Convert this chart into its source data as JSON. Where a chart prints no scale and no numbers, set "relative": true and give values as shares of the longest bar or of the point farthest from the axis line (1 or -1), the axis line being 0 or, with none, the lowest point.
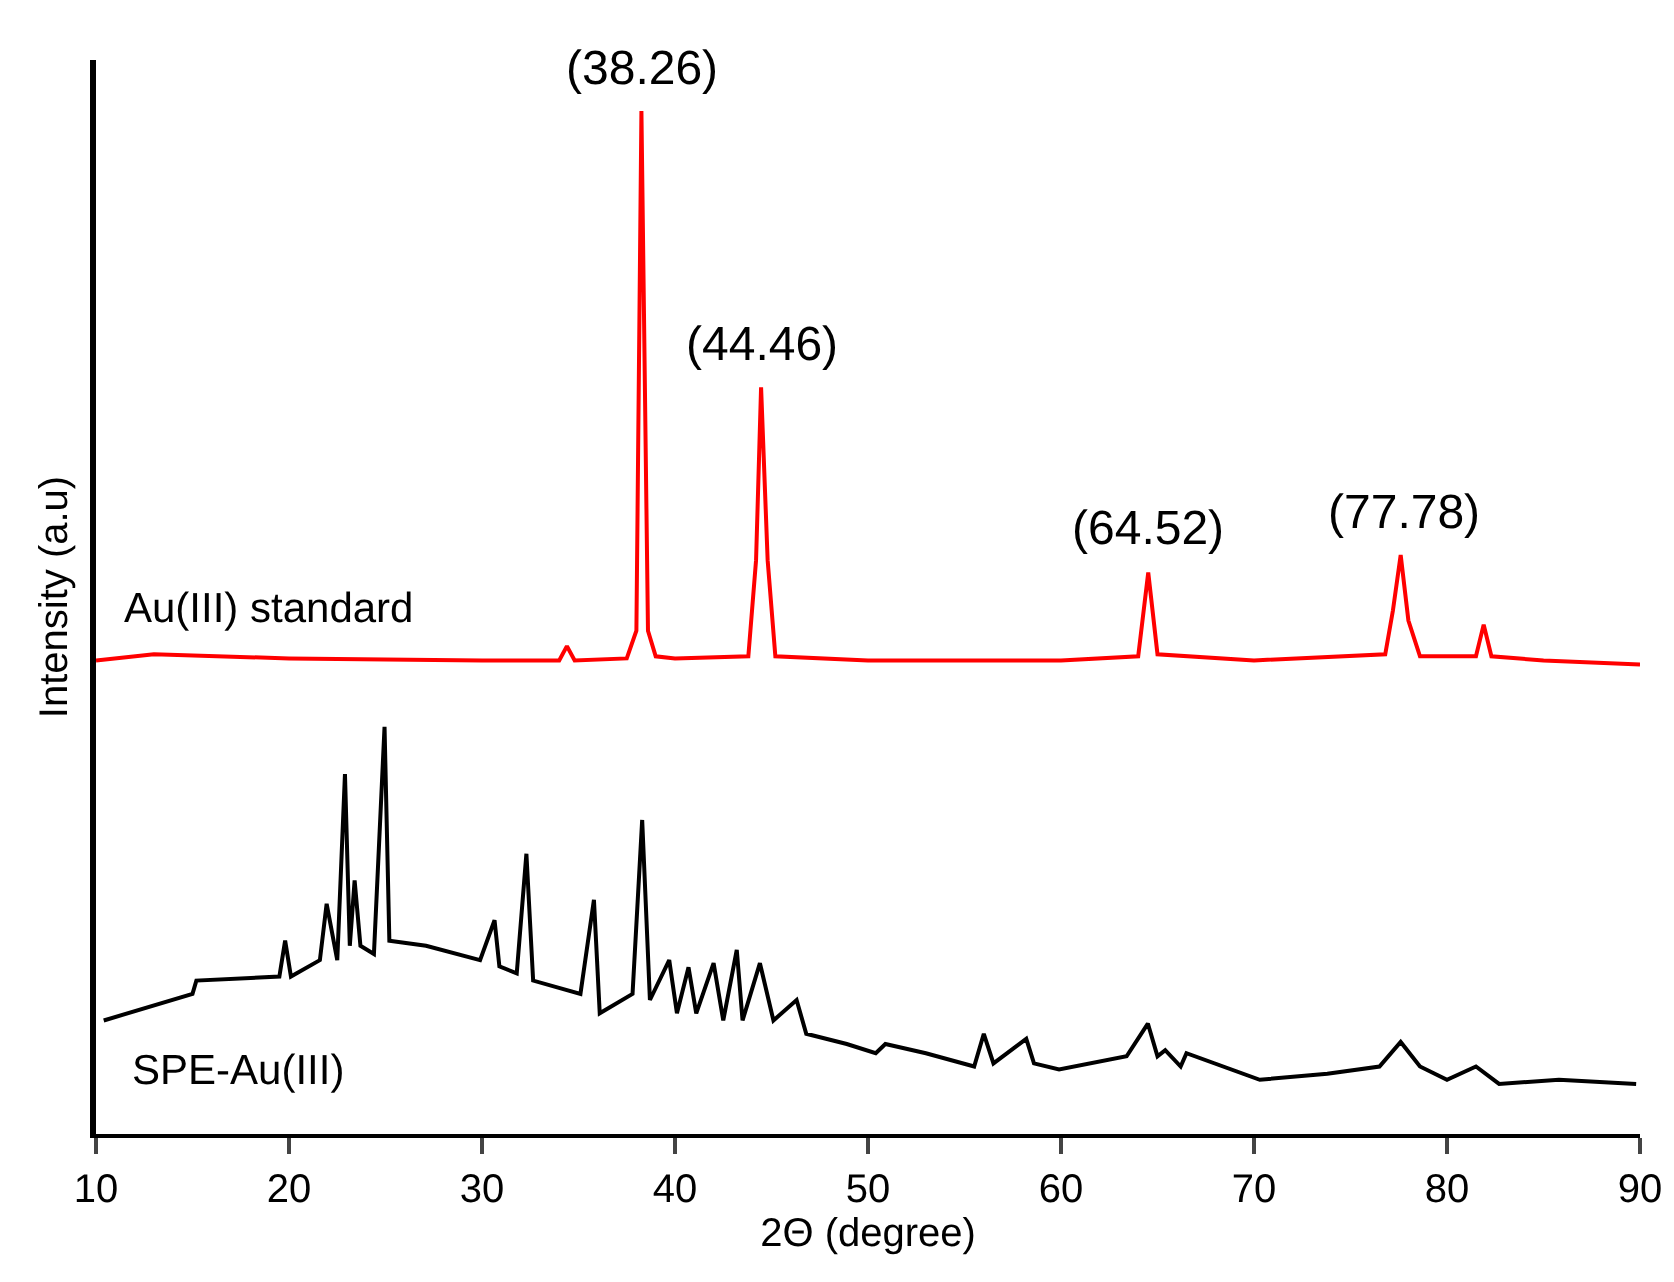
{
  "chart_data": {
    "type": "line",
    "relative": true,
    "xlabel": "2Θ (degree)",
    "ylabel": "Intensity (a.u)",
    "xlim": [
      10,
      90
    ],
    "xticks": [
      10,
      20,
      30,
      40,
      50,
      60,
      70,
      80,
      90
    ],
    "grid": false,
    "legend": false,
    "marker": "none",
    "line_style": "solid",
    "series": [
      {
        "name": "Au(III) standard",
        "color": "#ff0000",
        "x": [
          10,
          13,
          20,
          30,
          34.0,
          34.4,
          34.8,
          37.5,
          38.0,
          38.26,
          38.6,
          39,
          40,
          43.8,
          44.2,
          44.46,
          44.8,
          45.2,
          50,
          60,
          64.0,
          64.52,
          65.0,
          70,
          76.8,
          77.2,
          77.6,
          78.0,
          78.6,
          81.5,
          81.9,
          82.3,
          85,
          90
        ],
        "values": [
          0.463,
          0.469,
          0.465,
          0.463,
          0.463,
          0.477,
          0.463,
          0.465,
          0.492,
          1,
          0.492,
          0.467,
          0.465,
          0.467,
          0.561,
          0.73,
          0.561,
          0.467,
          0.463,
          0.463,
          0.467,
          0.549,
          0.469,
          0.463,
          0.469,
          0.512,
          0.566,
          0.502,
          0.467,
          0.467,
          0.498,
          0.467,
          0.463,
          0.459
        ]
      },
      {
        "name": "SPE-Au(III)",
        "color": "#000000",
        "x": [
          10.4,
          15.0,
          15.2,
          19.5,
          19.8,
          20.1,
          21.6,
          21.95,
          22.5,
          22.9,
          23.15,
          23.4,
          23.7,
          24.4,
          24.95,
          25.2,
          27.1,
          29.9,
          30.65,
          30.9,
          31.8,
          32.3,
          32.65,
          35.1,
          35.8,
          36.1,
          37.8,
          38.3,
          38.7,
          39.7,
          40.1,
          40.7,
          41.1,
          42.0,
          42.5,
          43.2,
          43.5,
          44.4,
          45.1,
          46.3,
          46.8,
          48.9,
          50.4,
          50.9,
          53.0,
          55.5,
          56.0,
          56.5,
          58.2,
          58.6,
          59.9,
          63.4,
          64.5,
          65.0,
          65.4,
          66.2,
          66.5,
          70.3,
          73.8,
          76.5,
          77.6,
          78.6,
          80.0,
          81.5,
          82.7,
          85.8,
          89.8
        ],
        "values": [
          0.111,
          0.137,
          0.15,
          0.154,
          0.189,
          0.154,
          0.17,
          0.225,
          0.17,
          0.352,
          0.184,
          0.248,
          0.184,
          0.176,
          0.398,
          0.189,
          0.184,
          0.17,
          0.209,
          0.164,
          0.157,
          0.274,
          0.15,
          0.137,
          0.229,
          0.118,
          0.137,
          0.307,
          0.131,
          0.17,
          0.118,
          0.163,
          0.118,
          0.167,
          0.111,
          0.18,
          0.111,
          0.167,
          0.111,
          0.131,
          0.098,
          0.088,
          0.079,
          0.088,
          0.079,
          0.066,
          0.098,
          0.069,
          0.093,
          0.069,
          0.063,
          0.076,
          0.108,
          0.076,
          0.082,
          0.066,
          0.079,
          0.053,
          0.059,
          0.066,
          0.09,
          0.066,
          0.053,
          0.066,
          0.049,
          0.053,
          0.049
        ]
      }
    ],
    "annotations": [
      {
        "text": "(38.26)",
        "x": 38.26,
        "y": 1
      },
      {
        "text": "(44.46)",
        "x": 44.46,
        "y": 0.73
      },
      {
        "text": "(64.52)",
        "x": 64.52,
        "y": 0.549
      },
      {
        "text": "(77.78)",
        "x": 77.78,
        "y": 0.566
      }
    ]
  }
}
